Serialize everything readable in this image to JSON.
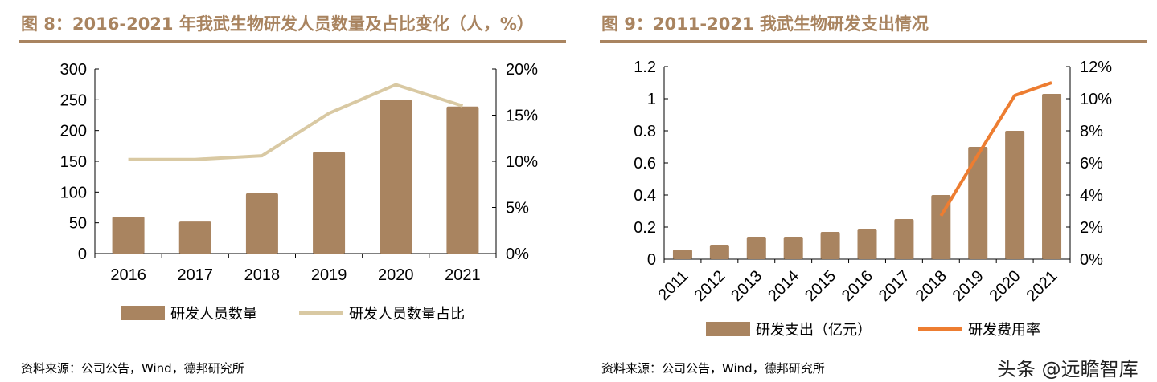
{
  "chart_data": [
    {
      "type": "bar+line",
      "title": "图 8：2016-2021 年我武生物研发人员数量及占比变化（人，%）",
      "categories": [
        "2016",
        "2017",
        "2018",
        "2019",
        "2020",
        "2021"
      ],
      "series": [
        {
          "name": "研发人员数量",
          "type": "bar",
          "axis": "left",
          "values": [
            60,
            52,
            98,
            165,
            250,
            239
          ],
          "color": "#a98460"
        },
        {
          "name": "研发人员数量占比",
          "type": "line",
          "axis": "right",
          "values": [
            10.2,
            10.2,
            10.6,
            15.2,
            18.3,
            16.0
          ],
          "color": "#d9c9a3"
        }
      ],
      "yleft": {
        "ticks": [
          "0",
          "50",
          "100",
          "150",
          "200",
          "250",
          "300"
        ],
        "range": [
          0,
          300
        ]
      },
      "yright": {
        "ticks": [
          "0%",
          "5%",
          "10%",
          "15%",
          "20%"
        ],
        "range": [
          0,
          20
        ]
      },
      "legend": "bottom",
      "source": "资料来源：公司公告，Wind，德邦研究所"
    },
    {
      "type": "bar+line",
      "title": "图 9：2011-2021 我武生物研发支出情况",
      "categories": [
        "2011",
        "2012",
        "2013",
        "2014",
        "2015",
        "2016",
        "2017",
        "2018",
        "2019",
        "2020",
        "2021"
      ],
      "series": [
        {
          "name": "研发支出（亿元）",
          "type": "bar",
          "axis": "left",
          "values": [
            0.06,
            0.09,
            0.14,
            0.14,
            0.17,
            0.19,
            0.25,
            0.4,
            0.7,
            0.8,
            1.03
          ],
          "color": "#a98460"
        },
        {
          "name": "研发费用率",
          "type": "line",
          "axis": "right",
          "values": [
            null,
            null,
            null,
            null,
            null,
            null,
            null,
            2.7,
            6.5,
            10.2,
            11.0
          ],
          "color": "#ed7d31"
        }
      ],
      "yleft": {
        "ticks": [
          "0",
          "0.2",
          "0.4",
          "0.6",
          "0.8",
          "1",
          "1.2"
        ],
        "range": [
          0,
          1.2
        ]
      },
      "yright": {
        "ticks": [
          "0%",
          "2%",
          "4%",
          "6%",
          "8%",
          "10%",
          "12%"
        ],
        "range": [
          0,
          12
        ]
      },
      "legend": "bottom",
      "source": "资料来源：公司公告，Wind，德邦研究所"
    }
  ],
  "watermark": "头条 @远瞻智库"
}
